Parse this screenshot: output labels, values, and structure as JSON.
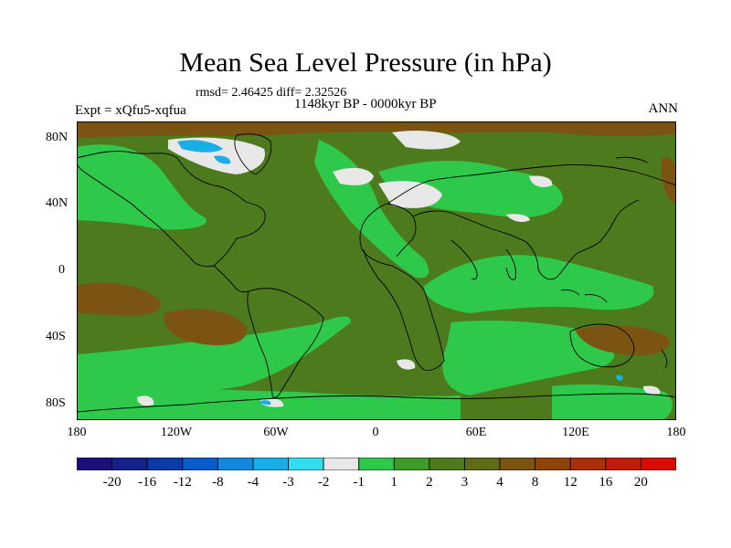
{
  "title": "Mean Sea Level Pressure (in hPa)",
  "stats": "rmsd= 2.46425 diff= 2.32526",
  "period": "1148kyr BP - 0000kyr BP",
  "experiment": "Expt = xQfu5-xqfua",
  "season": "ANN",
  "lat_ticks": [
    "80N",
    "40N",
    "0",
    "40S",
    "80S"
  ],
  "lon_ticks": [
    "180",
    "120W",
    "60W",
    "0",
    "60E",
    "120E",
    "180"
  ],
  "colorbar": {
    "colors": [
      "#1b0f7a",
      "#16228c",
      "#0b3ba8",
      "#0a5ccc",
      "#1188dd",
      "#18aee8",
      "#33ddee",
      "#e8e8e8",
      "#2ec84a",
      "#3f9a2a",
      "#4e7a1e",
      "#5e6a14",
      "#7a5410",
      "#8e4408",
      "#a83008",
      "#c01a08",
      "#d80c04"
    ],
    "labels": [
      "-20",
      "-16",
      "-12",
      "-8",
      "-4",
      "-3",
      "-2",
      "-1",
      "1",
      "2",
      "3",
      "4",
      "8",
      "12",
      "16",
      "20"
    ]
  },
  "palette": {
    "dark_olive": "#4e7a1e",
    "mid_green": "#3f9a2a",
    "bright_green": "#2ec84a",
    "brown": "#7a5410",
    "white": "#e8e8e8",
    "cyan": "#18aee8"
  }
}
